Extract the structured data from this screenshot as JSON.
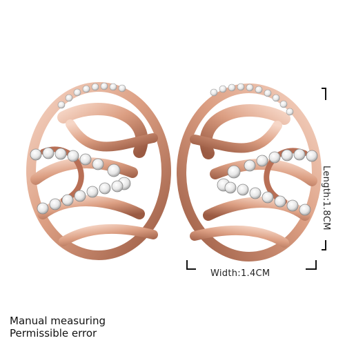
{
  "dimensions": {
    "length_label": "Length:1.8CM",
    "width_label": "Width:1.4CM"
  },
  "notes": {
    "line1": "Manual measuring",
    "line2": "Permissible error"
  },
  "colors": {
    "metal_light": "#f4cdbb",
    "metal_mid": "#d99a7f",
    "metal_dark": "#8a4a33",
    "crystal": "#f5f5f5",
    "crystal_edge": "#9a9a9a"
  }
}
